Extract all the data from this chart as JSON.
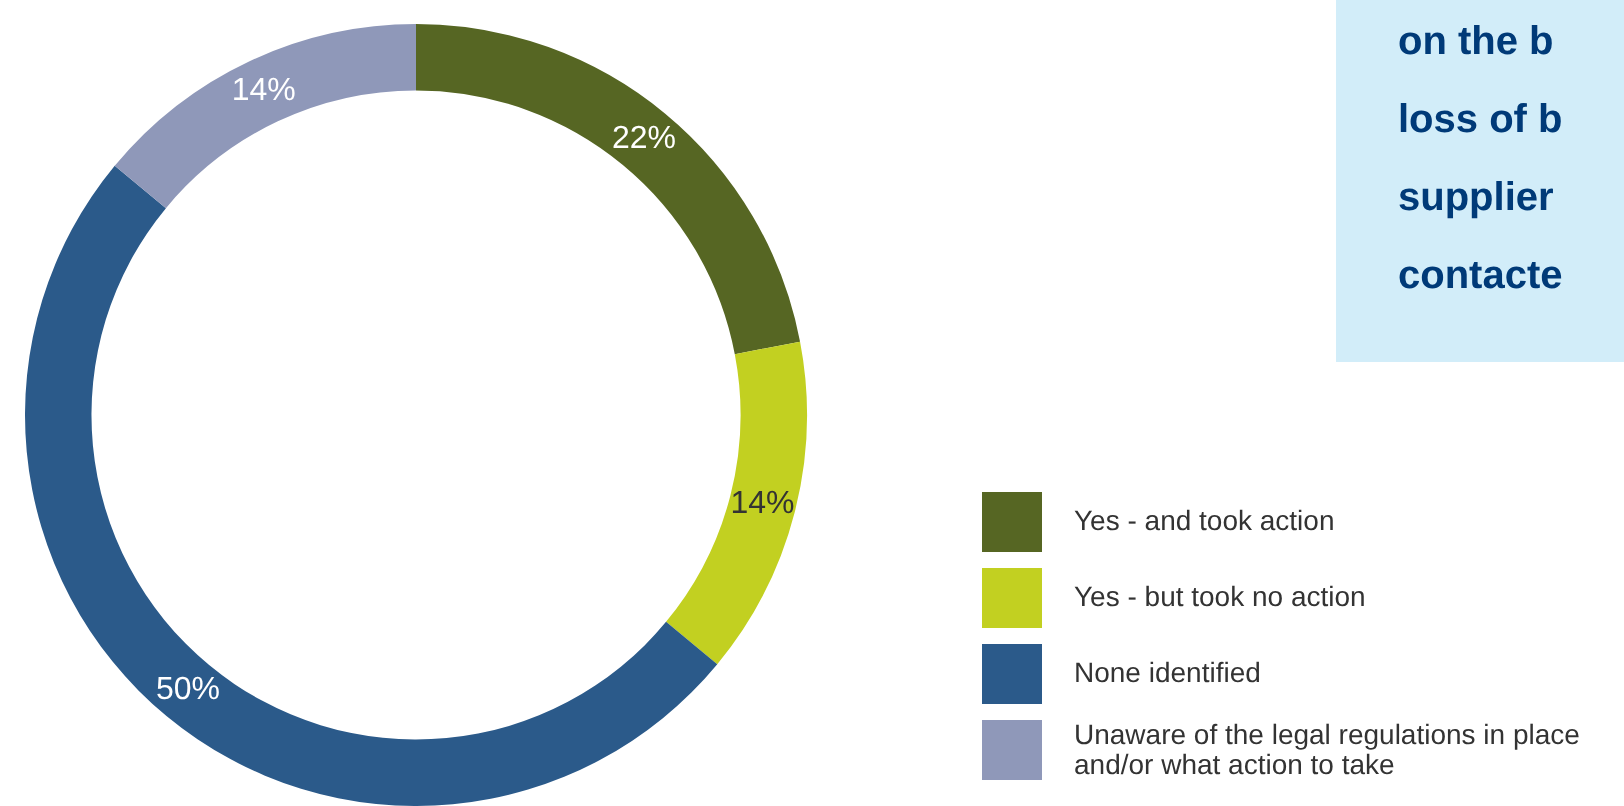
{
  "chart_data": {
    "type": "donut",
    "categories": [
      "Yes - and took action",
      "Yes - but took no action",
      "None identified",
      "Unaware of the legal regulations in place and/or what action to take"
    ],
    "values": [
      22,
      14,
      50,
      14
    ],
    "value_labels": [
      "22%",
      "14%",
      "50%",
      "14%"
    ],
    "colors": [
      "#566623",
      "#c2d021",
      "#2b5a8a",
      "#8f98b9"
    ],
    "legend": "right",
    "annotations": [
      "on the b\nloss of b\nsupplier\ncontacte"
    ]
  }
}
